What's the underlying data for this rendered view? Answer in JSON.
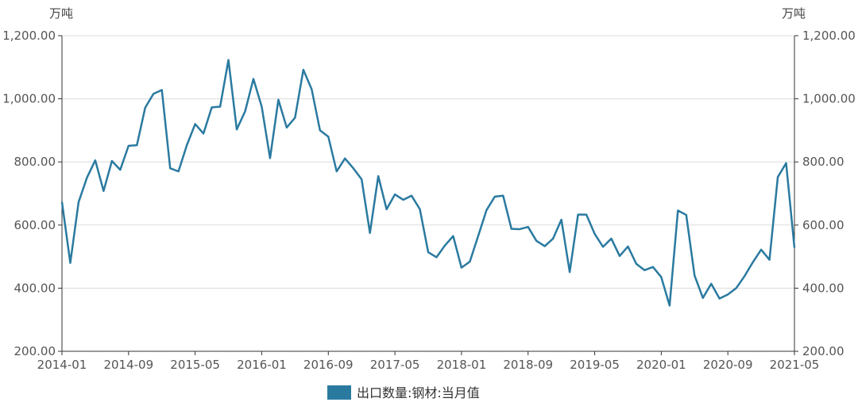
{
  "chart_data": {
    "type": "line",
    "unit_left": "万吨",
    "unit_right": "万吨",
    "ylim": [
      200,
      1200
    ],
    "y_ticks": [
      "200.00",
      "400.00",
      "600.00",
      "800.00",
      "1,000.00",
      "1,200.00"
    ],
    "y_tick_values": [
      200,
      400,
      600,
      800,
      1000,
      1200
    ],
    "x_ticks": [
      "2014-01",
      "2014-09",
      "2015-05",
      "2016-01",
      "2016-09",
      "2017-05",
      "2018-01",
      "2018-09",
      "2019-05",
      "2020-01",
      "2020-09",
      "2021-05"
    ],
    "grid": true,
    "legend_position": "bottom-center",
    "series": [
      {
        "name": "出口数量:钢材:当月值",
        "color": "#2a7aa0",
        "x": [
          "2014-01",
          "2014-02",
          "2014-03",
          "2014-04",
          "2014-05",
          "2014-06",
          "2014-07",
          "2014-08",
          "2014-09",
          "2014-10",
          "2014-11",
          "2014-12",
          "2015-01",
          "2015-02",
          "2015-03",
          "2015-04",
          "2015-05",
          "2015-06",
          "2015-07",
          "2015-08",
          "2015-09",
          "2015-10",
          "2015-11",
          "2015-12",
          "2016-01",
          "2016-02",
          "2016-03",
          "2016-04",
          "2016-05",
          "2016-06",
          "2016-07",
          "2016-08",
          "2016-09",
          "2016-10",
          "2016-11",
          "2016-12",
          "2017-01",
          "2017-02",
          "2017-03",
          "2017-04",
          "2017-05",
          "2017-06",
          "2017-07",
          "2017-08",
          "2017-09",
          "2017-10",
          "2017-11",
          "2017-12",
          "2018-01",
          "2018-02",
          "2018-03",
          "2018-04",
          "2018-05",
          "2018-06",
          "2018-07",
          "2018-08",
          "2018-09",
          "2018-10",
          "2018-11",
          "2018-12",
          "2019-01",
          "2019-02",
          "2019-03",
          "2019-04",
          "2019-05",
          "2019-06",
          "2019-07",
          "2019-08",
          "2019-09",
          "2019-10",
          "2019-11",
          "2019-12",
          "2020-01",
          "2020-02",
          "2020-03",
          "2020-04",
          "2020-05",
          "2020-06",
          "2020-07",
          "2020-08",
          "2020-09",
          "2020-10",
          "2020-11",
          "2020-12",
          "2021-01",
          "2021-02",
          "2021-03",
          "2021-04",
          "2021-05"
        ],
        "values": [
          673,
          480,
          673,
          750,
          805,
          708,
          803,
          775,
          851,
          853,
          972,
          1016,
          1028,
          780,
          770,
          853,
          920,
          890,
          973,
          975,
          1123,
          903,
          960,
          1063,
          975,
          812,
          997,
          909,
          940,
          1092,
          1030,
          900,
          880,
          770,
          811,
          780,
          745,
          575,
          755,
          650,
          697,
          680,
          693,
          650,
          514,
          498,
          535,
          565,
          465,
          484,
          565,
          647,
          690,
          693,
          588,
          587,
          594,
          550,
          533,
          557,
          617,
          451,
          633,
          633,
          572,
          531,
          557,
          502,
          532,
          477,
          457,
          467,
          435,
          345,
          646,
          632,
          440,
          369,
          414,
          367,
          380,
          400,
          438,
          482,
          522,
          490,
          752,
          796,
          528
        ]
      }
    ]
  }
}
